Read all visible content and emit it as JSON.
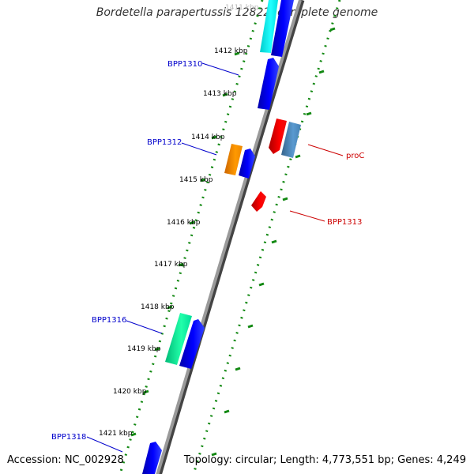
{
  "title": "Bordetella parapertussis 12822, complete genome",
  "accession": "Accession: NC_002928",
  "topology": "Topology: circular; Length: 4,773,551 bp; Genes: 4,249",
  "scale": {
    "faded_label": "1411 kbp",
    "labels": [
      "1412 kbp",
      "1413 kbp",
      "1414 kbp",
      "1415 kbp",
      "1416 kbp",
      "1417 kbp",
      "1418 kbp",
      "1419 kbp",
      "1420 kbp",
      "1421 kbp"
    ]
  },
  "genes": {
    "forward_label_color": "#0000cc",
    "reverse_label_color": "#cc0000",
    "labels": {
      "bpp1310": "BPP1310",
      "bpp1312": "BPP1312",
      "proc": "proC",
      "bpp1313": "BPP1313",
      "bpp1316": "BPP1316",
      "bpp1318": "BPP1318"
    }
  },
  "colors": {
    "backbone": "#888888",
    "ticks": "#118811",
    "blue": "#0000ee",
    "cyan": "#00ffff",
    "orange": "#ff8800",
    "red": "#ee0000",
    "steel": "#4682b4",
    "green": "#00ee99"
  }
}
